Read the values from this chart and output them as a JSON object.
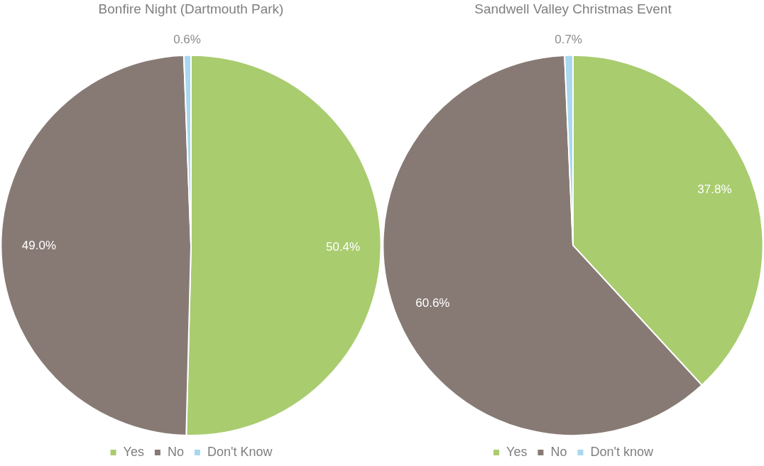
{
  "chart_data": [
    {
      "type": "pie",
      "title": "Bonfire Night (Dartmouth Park)",
      "categories": [
        "Yes",
        "No",
        "Don't Know"
      ],
      "values": [
        50.4,
        49.0,
        0.6
      ],
      "colors": [
        "#a9cc6f",
        "#877a74",
        "#a9d8f0"
      ],
      "value_labels": [
        "50.4%",
        "49.0%",
        "0.6%"
      ],
      "legend": "bottom"
    },
    {
      "type": "pie",
      "title": "Sandwell Valley Christmas Event",
      "categories": [
        "Yes",
        "No",
        "Don't know"
      ],
      "values": [
        37.8,
        60.6,
        0.7
      ],
      "colors": [
        "#a9cc6f",
        "#877a74",
        "#a9d8f0"
      ],
      "value_labels": [
        "37.8%",
        "60.6%",
        "0.7%"
      ],
      "legend": "bottom"
    }
  ]
}
